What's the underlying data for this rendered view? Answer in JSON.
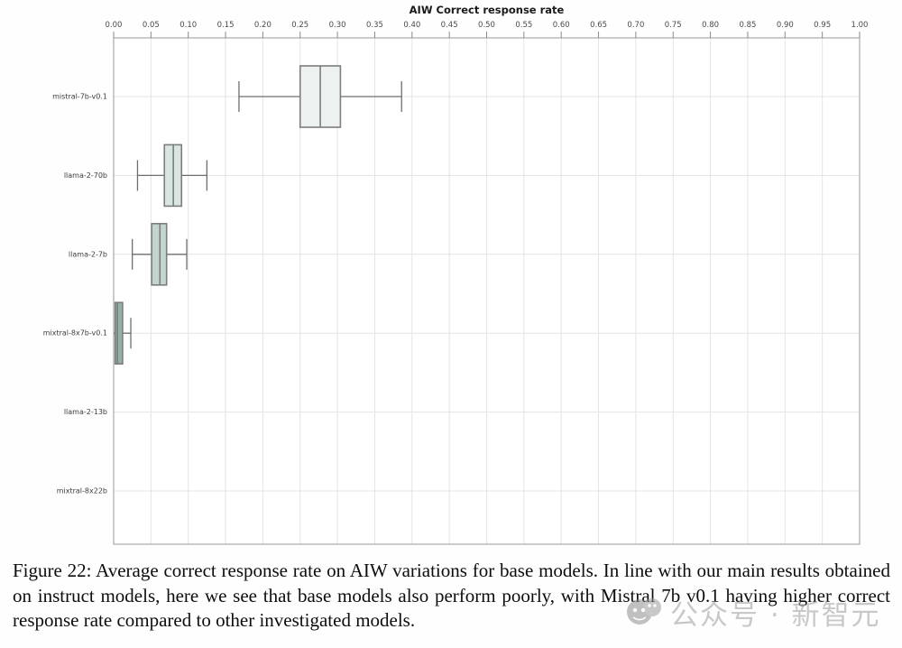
{
  "chart_data": {
    "type": "boxplot",
    "orientation": "horizontal",
    "title": "AIW Correct response rate",
    "xlabel": "AIW Correct response rate",
    "ylabel": "",
    "xlim": [
      0.0,
      1.0
    ],
    "axis_position": "top",
    "grid": true,
    "xticks": [
      "0.00",
      "0.05",
      "0.10",
      "0.15",
      "0.20",
      "0.25",
      "0.30",
      "0.35",
      "0.40",
      "0.45",
      "0.50",
      "0.55",
      "0.60",
      "0.65",
      "0.70",
      "0.75",
      "0.80",
      "0.85",
      "0.90",
      "0.95",
      "1.00"
    ],
    "categories": [
      "mistral-7b-v0.1",
      "llama-2-70b",
      "llama-2-7b",
      "mixtral-8x7b-v0.1",
      "llama-2-13b",
      "mixtral-8x22b"
    ],
    "series": [
      {
        "name": "mistral-7b-v0.1",
        "whisker_low": 0.168,
        "q1": 0.25,
        "median": 0.277,
        "q3": 0.304,
        "whisker_high": 0.386,
        "box_fill": "#edf2f0"
      },
      {
        "name": "llama-2-70b",
        "whisker_low": 0.032,
        "q1": 0.068,
        "median": 0.08,
        "q3": 0.091,
        "whisker_high": 0.125,
        "box_fill": "#d9e6e0"
      },
      {
        "name": "llama-2-7b",
        "whisker_low": 0.025,
        "q1": 0.051,
        "median": 0.062,
        "q3": 0.071,
        "whisker_high": 0.098,
        "box_fill": "#c3d6cd"
      },
      {
        "name": "mixtral-8x7b-v0.1",
        "whisker_low": 0.0,
        "q1": 0.002,
        "median": 0.005,
        "q3": 0.012,
        "whisker_high": 0.023,
        "box_fill": "#92b2a6"
      },
      {
        "name": "llama-2-13b",
        "whisker_low": 0.0,
        "q1": 0.0,
        "median": 0.0,
        "q3": 0.0,
        "whisker_high": 0.0,
        "box_fill": null
      },
      {
        "name": "mixtral-8x22b",
        "whisker_low": 0.0,
        "q1": 0.0,
        "median": 0.0,
        "q3": 0.0,
        "whisker_high": 0.0,
        "box_fill": null
      }
    ],
    "style": {
      "plot_bg": "#ffffff",
      "grid_color": "#e4e4e4",
      "spine_color": "#a9a9a9",
      "tick_color": "#8a8a8a",
      "box_stroke": "#7d7d7d",
      "whisker_color": "#6e6e6e",
      "title_color": "#1a1a1a",
      "tick_label_color": "#4a4a4a",
      "category_label_color": "#3c3c3c"
    }
  },
  "caption": {
    "text": "Figure 22: Average correct response rate on AIW variations for base models. In line with our main results obtained on instruct models, here we see that base models also perform poorly, with Mistral 7b v0.1 having higher correct response rate compared to other investigated models."
  },
  "watermark": {
    "icon": "wechat-bubbles-icon",
    "text": "公众号 · 新智元",
    "color": "#a8a8a8"
  }
}
